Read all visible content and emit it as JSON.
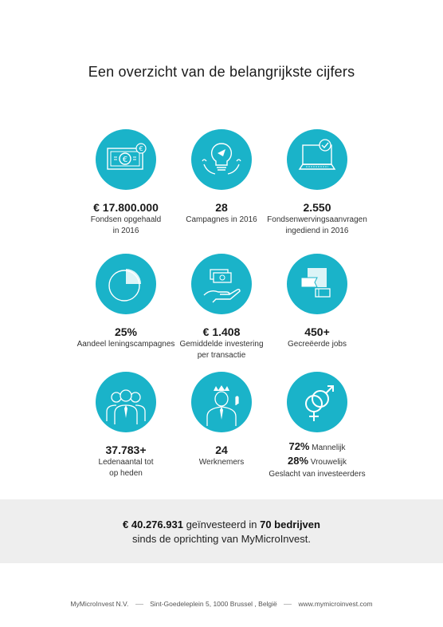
{
  "title": "Een overzicht van de belangrijkste cijfers",
  "colors": {
    "accent": "#1ab3c9",
    "band": "#eeeeee"
  },
  "stats": [
    {
      "icon": "banknote-icon",
      "value": "€ 17.800.000",
      "label": "Fondsen opgehaald\nin 2016"
    },
    {
      "icon": "lightbulb-icon",
      "value": "28",
      "label": "Campagnes in 2016"
    },
    {
      "icon": "laptop-check-icon",
      "value": "2.550",
      "label": "Fondsenwervingsaanvragen\ningediend in 2016"
    },
    {
      "icon": "pie-chart-icon",
      "value": "25%",
      "label": "Aandeel leningscampagnes"
    },
    {
      "icon": "hand-money-icon",
      "value": "€ 1.408",
      "label": "Gemiddelde investering\nper transactie"
    },
    {
      "icon": "jobs-flag-icon",
      "value": "450+",
      "label": "Gecreëerde jobs"
    },
    {
      "icon": "people-group-icon",
      "value": "37.783+",
      "label": "Ledenaantal tot\nop heden"
    },
    {
      "icon": "employee-icon",
      "value": "24",
      "label": "Werknemers"
    }
  ],
  "gender": {
    "icon": "gender-symbols-icon",
    "male_value": "72%",
    "male_label": "Mannelijk",
    "female_value": "28%",
    "female_label": "Vrouwelijk",
    "caption": "Geslacht van investeerders"
  },
  "summary": {
    "amount": "€ 40.276.931",
    "mid": "geïnvesteerd in",
    "companies": "70 bedrijven",
    "line2": "sinds de oprichting van MyMicroInvest."
  },
  "footer": {
    "company": "MyMicroInvest N.V.",
    "address": "Sint-Goedeleplein 5, 1000 Brussel , België",
    "website": "www.mymicroinvest.com"
  }
}
